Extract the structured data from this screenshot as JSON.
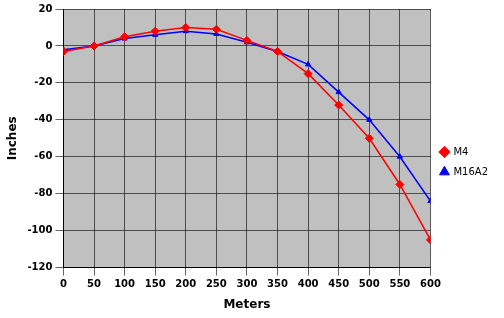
{
  "chart_data": {
    "type": "line",
    "x_label": "Meters",
    "y_label": "Inches",
    "x": [
      0,
      50,
      100,
      150,
      200,
      250,
      300,
      350,
      400,
      450,
      500,
      550,
      600
    ],
    "series": [
      {
        "name": "M4",
        "color": "#ff0000",
        "marker": "diamond",
        "values": [
          -3,
          0,
          5,
          8,
          10,
          9,
          3,
          -3,
          -15,
          -32,
          -50,
          -75,
          -105
        ]
      },
      {
        "name": "M16A2",
        "color": "#0000ff",
        "marker": "triangle",
        "values": [
          -2,
          0,
          4,
          6,
          8,
          6.5,
          2,
          -3,
          -10,
          -25,
          -40,
          -60,
          -84
        ]
      }
    ],
    "xlim": [
      0,
      600
    ],
    "xticks": [
      0,
      50,
      100,
      150,
      200,
      250,
      300,
      350,
      400,
      450,
      500,
      550,
      600
    ],
    "ylim": [
      -120,
      20
    ],
    "yticks": [
      -120,
      -100,
      -80,
      -60,
      -40,
      -20,
      0,
      20
    ],
    "grid": true,
    "legend": "right"
  }
}
